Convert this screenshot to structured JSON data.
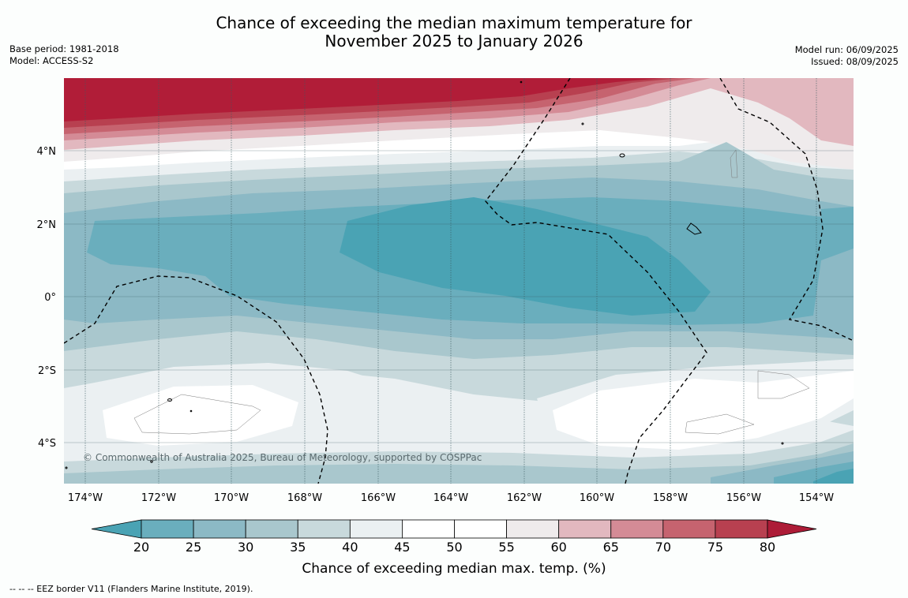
{
  "title": {
    "line1": "Chance of exceeding the median maximum temperature for",
    "line2": "November 2025 to January 2026"
  },
  "meta": {
    "base_period": "Base period: 1981-2018",
    "model": "Model: ACCESS-S2",
    "model_run": "Model run: 06/09/2025",
    "issued": "Issued: 08/09/2025"
  },
  "map": {
    "lon_labels": [
      "174°W",
      "172°W",
      "170°W",
      "168°W",
      "166°W",
      "164°W",
      "162°W",
      "160°W",
      "158°W",
      "156°W",
      "154°W"
    ],
    "lat_labels": [
      "4°N",
      "2°N",
      "0°",
      "2°S",
      "4°S"
    ],
    "copyright": "© Commonwealth of Australia 2025, Bureau of Meteorology, supported by COSPPac"
  },
  "colorbar": {
    "ticks": [
      "20",
      "25",
      "30",
      "35",
      "40",
      "45",
      "50",
      "55",
      "60",
      "65",
      "70",
      "75",
      "80"
    ],
    "colors": [
      "#4aa3b4",
      "#6aaebd",
      "#8cb9c5",
      "#a9c7cd",
      "#c8d9dc",
      "#ebf0f2",
      "#ffffff",
      "#ffffff",
      "#efebec",
      "#e2b8bf",
      "#d48b96",
      "#c6636f",
      "#b84050",
      "#ad1c37"
    ],
    "label": "Chance of exceeding median max. temp. (%)"
  },
  "footer": {
    "note": "--  --  -- EEZ border V11 (Flanders Marine Institute, 2019)."
  }
}
